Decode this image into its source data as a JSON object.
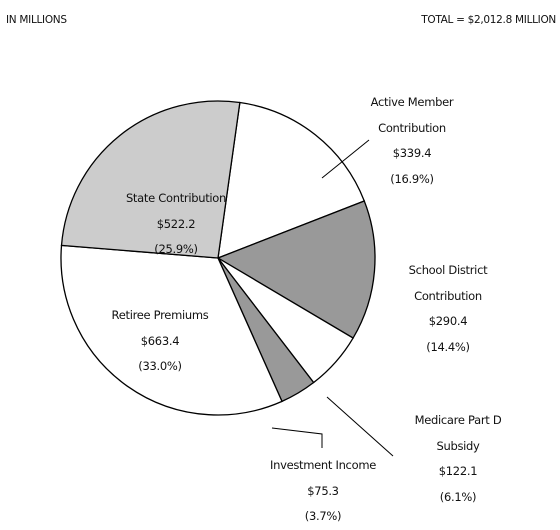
{
  "chart_data": {
    "type": "pie",
    "units": "IN MILLIONS",
    "total_label": "TOTAL = $2,012.8 MILLION",
    "categories": [
      "Active Member Contribution",
      "School District Contribution",
      "Medicare Part D Subsidy",
      "Investment Income",
      "Retiree Premiums",
      "State Contribution"
    ],
    "values": [
      339.4,
      290.4,
      122.1,
      75.3,
      663.4,
      522.2
    ],
    "value_labels": [
      "$339.4",
      "$290.4",
      "$122.1",
      "$75.3",
      "$663.4",
      "$522.2"
    ],
    "percents": [
      16.9,
      14.4,
      6.1,
      3.7,
      33.0,
      25.9
    ],
    "percent_labels": [
      "(16.9%)",
      "(14.4%)",
      "(6.1%)",
      "(3.7%)",
      "(33.0%)",
      "(25.9%)"
    ],
    "colors": [
      "#ffffff",
      "#999999",
      "#ffffff",
      "#999999",
      "#ffffff",
      "#cccccc"
    ]
  }
}
